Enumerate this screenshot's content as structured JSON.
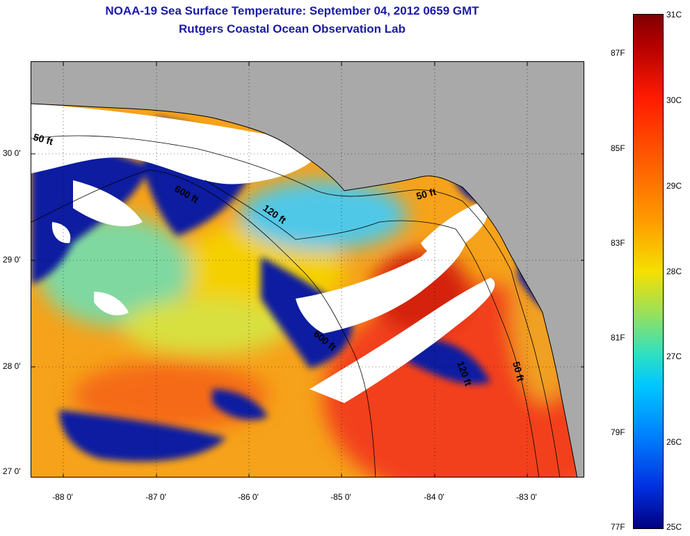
{
  "header": {
    "title": "NOAA-19 Sea Surface Temperature:  September 04, 2012 0659 GMT",
    "subtitle": "Rutgers Coastal Ocean Observation Lab"
  },
  "map": {
    "lat_labels": [
      "30 0'",
      "29 0'",
      "28 0'",
      "27 0'"
    ],
    "lon_labels": [
      "-88 0'",
      "-87 0'",
      "-86 0'",
      "-85 0'",
      "-84 0'",
      "-83 0'"
    ],
    "contour_labels": [
      "50 ft",
      "600 ft",
      "120 ft",
      "50 ft",
      "600 ft",
      "120 ft",
      "50 ft"
    ],
    "colors": {
      "land": "#a9a9a9",
      "cloud": "#ffffff",
      "frame": "#000000"
    }
  },
  "colorbar": {
    "celsius_labels": [
      "31C",
      "30C",
      "29C",
      "28C",
      "27C",
      "26C",
      "25C"
    ],
    "fahrenheit_labels": [
      "87F",
      "85F",
      "83F",
      "81F",
      "79F",
      "77F"
    ]
  }
}
